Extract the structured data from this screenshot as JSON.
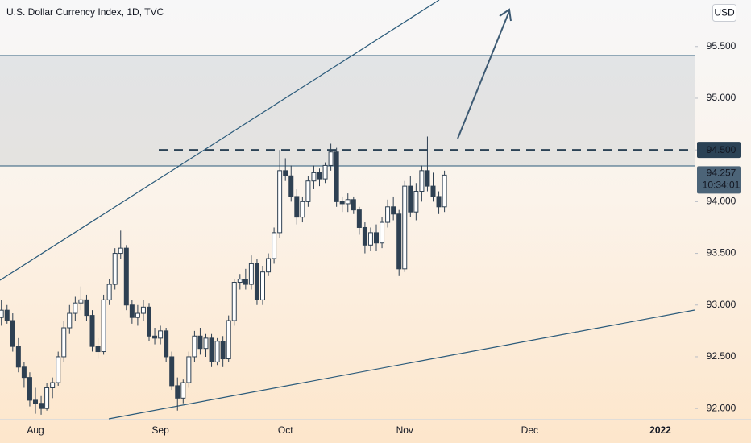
{
  "chart_data": {
    "type": "candlestick",
    "title": "U.S. Dollar Currency Index, 1D, TVC",
    "currency": "USD",
    "categories": [
      null,
      null,
      null,
      null,
      null,
      null,
      "Aug",
      null,
      null,
      null,
      null,
      null,
      null,
      null,
      null,
      null,
      null,
      null,
      null,
      null,
      null,
      null,
      null,
      null,
      null,
      null,
      null,
      null,
      "Sep",
      null,
      null,
      null,
      null,
      null,
      null,
      null,
      null,
      null,
      null,
      null,
      null,
      null,
      null,
      null,
      null,
      null,
      null,
      null,
      null,
      null,
      "Oct",
      null,
      null,
      null,
      null,
      null,
      null,
      null,
      null,
      null,
      null,
      null,
      null,
      null,
      null,
      null,
      null,
      null,
      null,
      null,
      null,
      "Nov",
      null,
      null,
      null,
      null,
      null,
      null,
      null,
      null,
      null,
      null,
      null,
      null,
      null,
      null,
      null,
      null,
      null,
      null,
      null,
      null,
      null,
      "Dec",
      null,
      null,
      null,
      null,
      null,
      null,
      null,
      null,
      null,
      null,
      null,
      null,
      null,
      null,
      null,
      null,
      null,
      null,
      null,
      null,
      null,
      null,
      "2022"
    ],
    "open": [
      92.88,
      92.95,
      92.85,
      92.6,
      92.4,
      92.3,
      92.08,
      92.05,
      92.0,
      92.2,
      92.25,
      92.5,
      92.78,
      92.92,
      93.02,
      93.05,
      92.9,
      92.6,
      92.55,
      93.05,
      93.2,
      93.5,
      93.55,
      93.0,
      92.88,
      92.92,
      92.98,
      92.7,
      92.68,
      92.75,
      92.5,
      92.22,
      92.1,
      92.25,
      92.5,
      92.7,
      92.58,
      92.68,
      92.45,
      92.65,
      92.48,
      92.85,
      93.22,
      93.25,
      93.2,
      93.4,
      93.05,
      93.32,
      93.45,
      93.7,
      94.3,
      94.25,
      94.05,
      93.85,
      94.0,
      94.2,
      94.28,
      94.22,
      94.35,
      94.48,
      94.0,
      93.98,
      94.02,
      93.92,
      93.75,
      93.58,
      93.7,
      93.6,
      93.8,
      93.95,
      93.88,
      93.35,
      94.15,
      93.9,
      94.1,
      94.3,
      94.15,
      94.05,
      93.95,
      null,
      null,
      null,
      null,
      null,
      null,
      null,
      null,
      null,
      null,
      null,
      null,
      null,
      null,
      null,
      null,
      null,
      null,
      null,
      null,
      null,
      null,
      null,
      null,
      null,
      null,
      null,
      null,
      null,
      null,
      null,
      null,
      null,
      null,
      null,
      null,
      null,
      null
    ],
    "high": [
      93.05,
      93.0,
      92.92,
      92.68,
      92.45,
      92.35,
      92.2,
      92.12,
      92.25,
      92.3,
      92.55,
      92.85,
      93.0,
      93.08,
      93.18,
      93.1,
      92.95,
      92.68,
      93.1,
      93.25,
      93.55,
      93.72,
      93.58,
      93.05,
      93.0,
      93.05,
      93.02,
      92.78,
      92.8,
      92.78,
      92.55,
      92.3,
      92.28,
      92.55,
      92.75,
      92.78,
      92.72,
      92.72,
      92.68,
      92.7,
      92.9,
      93.25,
      93.3,
      93.35,
      93.48,
      93.45,
      93.38,
      93.5,
      93.75,
      94.5,
      94.42,
      94.35,
      94.12,
      94.05,
      94.25,
      94.35,
      94.32,
      94.38,
      94.56,
      94.52,
      94.05,
      94.08,
      94.05,
      93.95,
      93.8,
      93.75,
      93.78,
      93.85,
      94.02,
      94.05,
      93.92,
      94.2,
      94.25,
      94.18,
      94.35,
      94.63,
      94.28,
      94.1,
      94.3,
      null,
      null,
      null,
      null,
      null,
      null,
      null,
      null,
      null,
      null,
      null,
      null,
      null,
      null,
      null,
      null,
      null,
      null,
      null,
      null,
      null,
      null,
      null,
      null,
      null,
      null,
      null,
      null,
      null,
      null,
      null,
      null,
      null,
      null,
      null,
      null,
      null,
      null
    ],
    "low": [
      92.8,
      92.82,
      92.55,
      92.35,
      92.2,
      92.02,
      91.95,
      91.94,
      91.98,
      92.1,
      92.22,
      92.45,
      92.72,
      92.85,
      92.95,
      92.85,
      92.55,
      92.48,
      92.52,
      93.0,
      93.15,
      93.45,
      92.95,
      92.82,
      92.8,
      92.85,
      92.65,
      92.62,
      92.62,
      92.45,
      92.18,
      91.98,
      92.05,
      92.2,
      92.45,
      92.52,
      92.5,
      92.4,
      92.42,
      92.4,
      92.45,
      92.8,
      93.15,
      93.15,
      93.15,
      93.0,
      93.0,
      93.28,
      93.4,
      93.65,
      94.2,
      94.0,
      93.78,
      93.8,
      93.95,
      94.12,
      94.15,
      94.18,
      94.3,
      93.95,
      93.9,
      93.9,
      93.88,
      93.68,
      93.5,
      93.52,
      93.52,
      93.55,
      93.75,
      93.82,
      93.28,
      93.32,
      93.85,
      93.82,
      94.0,
      94.1,
      94.0,
      93.88,
      93.9,
      null,
      null,
      null,
      null,
      null,
      null,
      null,
      null,
      null,
      null,
      null,
      null,
      null,
      null,
      null,
      null,
      null,
      null,
      null,
      null,
      null,
      null,
      null,
      null,
      null,
      null,
      null,
      null,
      null,
      null,
      null,
      null,
      null,
      null,
      null,
      null,
      null,
      null
    ],
    "close": [
      92.95,
      92.85,
      92.6,
      92.4,
      92.3,
      92.08,
      92.05,
      92.0,
      92.2,
      92.25,
      92.5,
      92.78,
      92.92,
      93.02,
      93.05,
      92.9,
      92.6,
      92.55,
      93.05,
      93.2,
      93.5,
      93.55,
      93.0,
      92.88,
      92.92,
      92.98,
      92.7,
      92.68,
      92.75,
      92.5,
      92.22,
      92.1,
      92.25,
      92.5,
      92.7,
      92.58,
      92.68,
      92.45,
      92.65,
      92.48,
      92.85,
      93.22,
      93.25,
      93.2,
      93.4,
      93.05,
      93.32,
      93.45,
      93.7,
      94.3,
      94.25,
      94.05,
      93.85,
      94.0,
      94.2,
      94.28,
      94.22,
      94.35,
      94.48,
      94.0,
      93.98,
      94.02,
      93.92,
      93.75,
      93.58,
      93.7,
      93.6,
      93.8,
      93.95,
      93.88,
      93.35,
      94.15,
      93.9,
      94.1,
      94.3,
      94.15,
      94.05,
      93.95,
      94.257,
      null,
      null,
      null,
      null,
      null,
      null,
      null,
      null,
      null,
      null,
      null,
      null,
      null,
      null,
      null,
      null,
      null,
      null,
      null,
      null,
      null,
      null,
      null,
      null,
      null,
      null,
      null,
      null,
      null,
      null,
      null,
      null,
      null,
      null,
      null,
      null,
      null,
      null
    ],
    "colors": {
      "up": "#ffffff",
      "down": "#2e4052",
      "wick": "#2e4052",
      "level": "#2b4255",
      "last_price": "#4c6478"
    },
    "ylim": [
      91.9,
      95.95
    ],
    "yticks": [
      {
        "value": 92,
        "label": "92.000"
      },
      {
        "value": 92.5,
        "label": "92.500"
      },
      {
        "value": 93,
        "label": "93.000"
      },
      {
        "value": 93.5,
        "label": "93.500"
      },
      {
        "value": 94,
        "label": "94.000"
      },
      {
        "value": 94.5,
        "label": "94.500"
      },
      {
        "value": 95,
        "label": "95.000"
      },
      {
        "value": 95.5,
        "label": "95.500"
      }
    ],
    "level": {
      "value": 94.5,
      "label": "94.500"
    },
    "last_price": {
      "value": 94.257,
      "label": "94.257",
      "countdown": "10:34:01"
    }
  }
}
